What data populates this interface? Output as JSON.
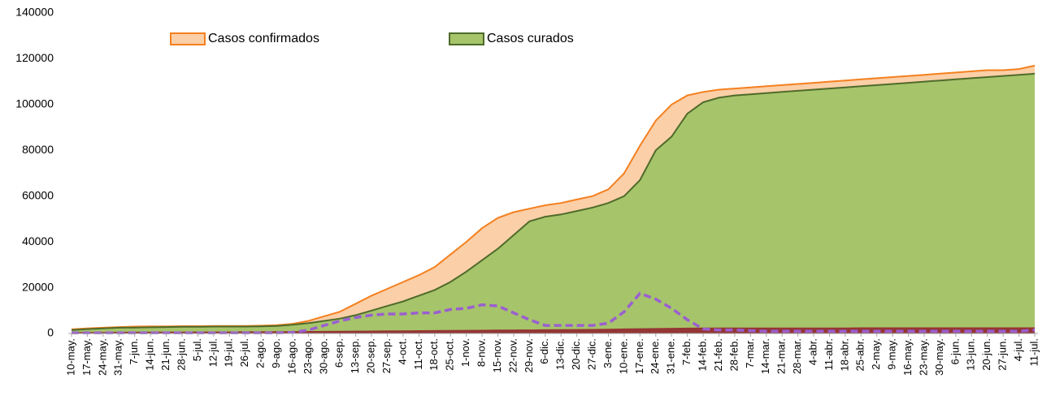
{
  "chart_data": {
    "type": "area",
    "categories": [
      "10-may.",
      "17-may.",
      "24-may.",
      "31-may.",
      "7-jun.",
      "14-jun.",
      "21-jun.",
      "28-jun.",
      "5-jul.",
      "12-jul.",
      "19-jul.",
      "26-jul.",
      "2-ago.",
      "9-ago.",
      "16-ago.",
      "23-ago.",
      "30-ago.",
      "6-sep.",
      "13-sep.",
      "20-sep.",
      "27-sep.",
      "4-oct.",
      "11-oct.",
      "18-oct.",
      "25-oct.",
      "1-nov.",
      "8-nov.",
      "15-nov.",
      "22-nov.",
      "29-nov.",
      "6-dic.",
      "13-dic.",
      "20-dic.",
      "27-dic.",
      "3-ene.",
      "10-ene.",
      "17-ene.",
      "24-ene.",
      "31-ene.",
      "7-feb.",
      "14-feb.",
      "21-feb.",
      "28-feb.",
      "7-mar.",
      "14-mar.",
      "21-mar.",
      "28-mar.",
      "4-abr.",
      "11-abr.",
      "18-abr.",
      "25-abr.",
      "2-may.",
      "9-may.",
      "16-may.",
      "23-may.",
      "30-may.",
      "6-jun.",
      "13-jun.",
      "20-jun.",
      "27-jun.",
      "4-jul.",
      "11-jul."
    ],
    "series": [
      {
        "name": "Casos confirmados",
        "mark": "area",
        "color": "#fbcfa8",
        "stroke": "#f4801f",
        "values": [
          1800,
          2200,
          2500,
          2800,
          3000,
          3100,
          3100,
          3200,
          3200,
          3300,
          3300,
          3300,
          3400,
          3600,
          4200,
          5500,
          7500,
          9500,
          13000,
          16500,
          19500,
          22500,
          25500,
          29000,
          34500,
          40000,
          46000,
          50500,
          53000,
          54500,
          56000,
          57000,
          58500,
          60000,
          63000,
          70000,
          82000,
          93000,
          100000,
          104000,
          105500,
          106500,
          107000,
          107500,
          108000,
          108500,
          109000,
          109500,
          110000,
          110500,
          111000,
          111500,
          112000,
          112500,
          113000,
          113500,
          114000,
          114500,
          115000,
          115000,
          115500,
          117000
        ]
      },
      {
        "name": "Casos curados",
        "mark": "area",
        "color": "#a6c46a",
        "stroke": "#4e6b2a",
        "values": [
          1500,
          1900,
          2200,
          2500,
          2600,
          2700,
          2800,
          2900,
          2900,
          3000,
          3000,
          3000,
          3100,
          3300,
          3800,
          4500,
          5500,
          6500,
          8000,
          10000,
          12000,
          14000,
          16500,
          19000,
          22500,
          27000,
          32000,
          37000,
          43000,
          49000,
          51000,
          52000,
          53500,
          55000,
          57000,
          60000,
          67000,
          80000,
          86000,
          96000,
          101000,
          103000,
          104000,
          104500,
          105000,
          105500,
          106000,
          106500,
          107000,
          107500,
          108000,
          108500,
          109000,
          109500,
          110000,
          110500,
          111000,
          111500,
          112000,
          112500,
          113000,
          113500
        ]
      },
      {
        "mark": "area",
        "color": "#943634",
        "stroke": "#943634",
        "values": [
          200,
          250,
          300,
          350,
          400,
          400,
          450,
          450,
          500,
          500,
          500,
          550,
          550,
          600,
          650,
          700,
          750,
          800,
          850,
          900,
          950,
          1000,
          1050,
          1100,
          1150,
          1200,
          1250,
          1300,
          1350,
          1400,
          1450,
          1500,
          1550,
          1600,
          1700,
          1800,
          1900,
          2000,
          2100,
          2150,
          2200,
          2200,
          2200,
          2200,
          2250,
          2250,
          2250,
          2250,
          2250,
          2250,
          2300,
          2300,
          2300,
          2300,
          2300,
          2300,
          2300,
          2300,
          2300,
          2300,
          2300,
          2300
        ]
      },
      {
        "mark": "dashed-line",
        "color": "#9a5fd0",
        "values": [
          300,
          300,
          300,
          300,
          300,
          300,
          300,
          300,
          300,
          300,
          300,
          300,
          300,
          300,
          500,
          1500,
          3500,
          5500,
          7000,
          8000,
          8500,
          8500,
          9000,
          9000,
          10500,
          11000,
          12500,
          12000,
          9000,
          6000,
          3500,
          3500,
          3500,
          3500,
          4500,
          9500,
          17500,
          15000,
          11000,
          6000,
          2000,
          1500,
          1500,
          1200,
          1000,
          1000,
          1000,
          1000,
          1000,
          1000,
          1000,
          1000,
          1000,
          1000,
          1000,
          1000,
          1000,
          1000,
          1000,
          1000,
          1000,
          1500
        ]
      }
    ],
    "ylim": [
      0,
      140000
    ],
    "yticks": [
      0,
      20000,
      40000,
      60000,
      80000,
      100000,
      120000,
      140000
    ],
    "grid": false
  }
}
